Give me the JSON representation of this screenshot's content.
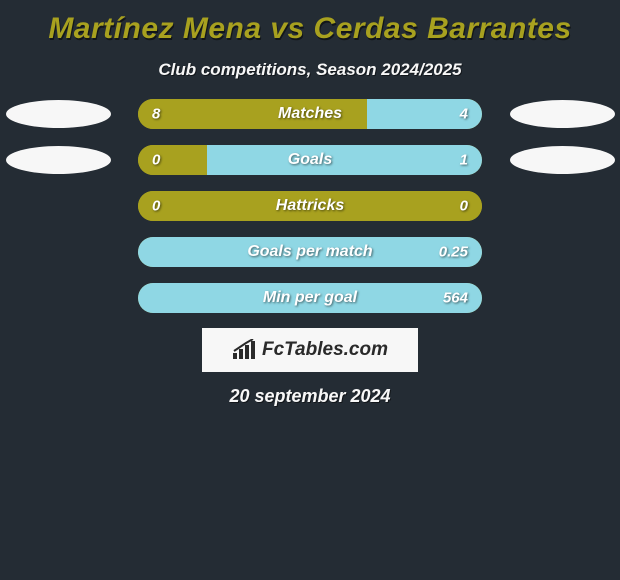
{
  "page_bg": "#242c34",
  "title": "Martínez Mena vs Cerdas Barrantes",
  "title_color": "#a8a11f",
  "title_shadow": "1px 2px 0 rgba(0,0,0,0.5)",
  "subtitle": "Club competitions, Season 2024/2025",
  "subtitle_color": "#f7f7f7",
  "subtitle_shadow": "1px 1px 0 rgba(0,0,0,0.5)",
  "left_color": "#a8a11f",
  "right_color": "#8fd7e4",
  "oval_color": "#f7f7f7",
  "rows": [
    {
      "label": "Matches",
      "left": "8",
      "right": "4",
      "left_pct": 66.7,
      "right_pct": 33.3,
      "show_ovals": true
    },
    {
      "label": "Goals",
      "left": "0",
      "right": "1",
      "left_pct": 20.0,
      "right_pct": 80.0,
      "show_ovals": true
    },
    {
      "label": "Hattricks",
      "left": "0",
      "right": "0",
      "left_pct": 100.0,
      "right_pct": 0.0,
      "show_ovals": false
    },
    {
      "label": "Goals per match",
      "left": "",
      "right": "0.25",
      "left_pct": 0.0,
      "right_pct": 100.0,
      "show_ovals": false
    },
    {
      "label": "Min per goal",
      "left": "",
      "right": "564",
      "left_pct": 0.0,
      "right_pct": 100.0,
      "show_ovals": false
    }
  ],
  "logo": {
    "bg": "#f7f7f7",
    "icon_color": "#2a2a2a",
    "text": "FcTables.com",
    "text_color": "#2a2a2a"
  },
  "date": "20 september 2024",
  "date_color": "#f7f7f7",
  "date_shadow": "1px 1px 0 rgba(0,0,0,0.5)"
}
